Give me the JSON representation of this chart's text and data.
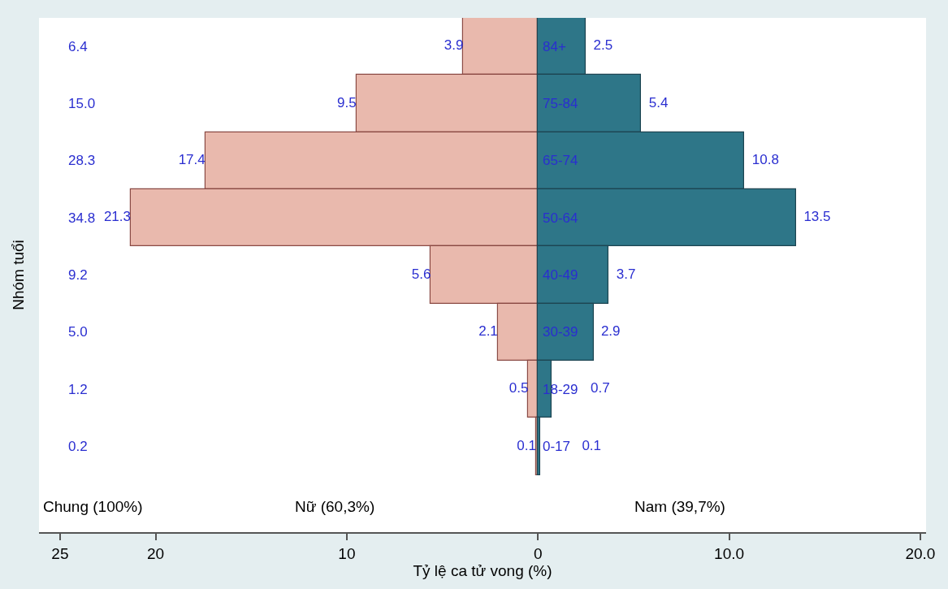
{
  "chart_data": {
    "type": "bar",
    "orientation": "horizontal",
    "categories": [
      "84+",
      "75-84",
      "65-74",
      "50-64",
      "40-49",
      "30-39",
      "18-29",
      "0-17"
    ],
    "series": [
      {
        "color": "#e9b9ad",
        "values": [
          3.9,
          9.5,
          17.4,
          21.3,
          5.6,
          2.1,
          0.5,
          0.1
        ],
        "base": [
          -3.9,
          -9.5,
          -17.4,
          -21.3,
          -5.6,
          -2.1,
          -0.5,
          -0.1
        ]
      },
      {
        "color": "#2e7688",
        "values": [
          2.5,
          5.4,
          10.8,
          13.5,
          3.7,
          2.9,
          0.7,
          0.1
        ]
      }
    ],
    "data_labels": true,
    "xlabel": "Tỷ lệ ca tử vong (%)",
    "ylabel": "Nhóm tuổi",
    "xlim": [
      -26.1,
      20.3
    ],
    "xticks": [
      {
        "value": -25,
        "label": "25"
      },
      {
        "value": -20,
        "label": "20"
      },
      {
        "value": -10,
        "label": "10"
      },
      0,
      {
        "value": 10,
        "label": "10.0"
      },
      {
        "value": 20,
        "label": "20.0"
      }
    ],
    "annotations": [
      "Chung (100%)",
      "Nữ (60,3%)",
      "Nam (39,7%)",
      "6.4",
      "15.0",
      "28.3",
      "34.8",
      "9.2",
      "5.0",
      "1.2",
      "0.2"
    ]
  }
}
